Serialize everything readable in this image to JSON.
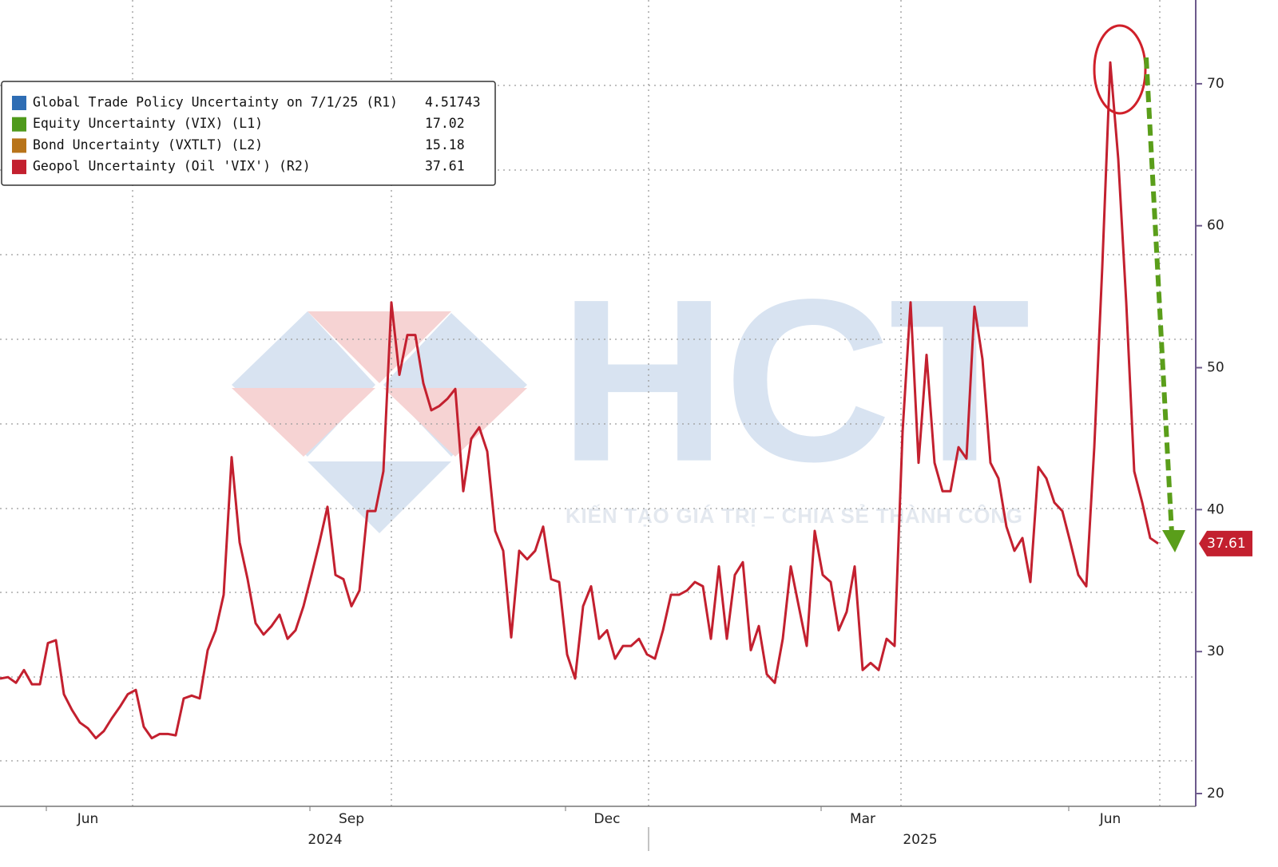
{
  "chart_data": {
    "type": "line",
    "categories": [
      null,
      null,
      null,
      null,
      null,
      null,
      null,
      null,
      null,
      null,
      null,
      "Jun",
      null,
      null,
      null,
      null,
      null,
      null,
      null,
      null,
      null,
      null,
      null,
      null,
      null,
      null,
      null,
      null,
      null,
      null,
      null,
      null,
      null,
      null,
      null,
      null,
      null,
      null,
      null,
      null,
      null,
      null,
      null,
      null,
      "Sep",
      null,
      null,
      null,
      null,
      null,
      null,
      null,
      null,
      null,
      null,
      null,
      null,
      null,
      null,
      null,
      null,
      null,
      null,
      null,
      null,
      null,
      null,
      null,
      null,
      null,
      null,
      null,
      null,
      null,
      null,
      null,
      "Dec",
      null,
      null,
      null,
      null,
      null,
      null,
      null,
      null,
      null,
      null,
      null,
      null,
      null,
      null,
      null,
      null,
      null,
      null,
      null,
      null,
      null,
      null,
      null,
      null,
      null,
      null,
      null,
      null,
      null,
      null,
      null,
      "Mar",
      null,
      null,
      null,
      null,
      null,
      null,
      null,
      null,
      null,
      null,
      null,
      null,
      null,
      null,
      null,
      null,
      null,
      null,
      null,
      null,
      null,
      null,
      null,
      null,
      null,
      null,
      null,
      null,
      null,
      null,
      "Jun",
      null,
      null,
      null,
      null,
      null,
      null
    ],
    "x_group_labels": [
      "2024",
      "2025"
    ],
    "series": [
      {
        "name": "Global Trade Policy Uncertainty on 7/1/25 (R1)",
        "color": "#2e6db4",
        "last_value": 4.51743
      },
      {
        "name": "Equity Uncertainty (VIX) (L1)",
        "color": "#4f9a1c",
        "last_value": 17.02
      },
      {
        "name": "Bond Uncertainty (VXTLT) (L2)",
        "color": "#b8741a",
        "last_value": 15.18
      },
      {
        "name": "Geopol Uncertainty (Oil 'VIX') (R2)",
        "color": "#c3202f",
        "last_value": 37.61,
        "axis": "y2",
        "values": [
          28.1,
          28.2,
          27.8,
          28.7,
          27.7,
          27.7,
          30.6,
          30.8,
          27.0,
          25.9,
          25.0,
          24.6,
          23.9,
          24.4,
          25.3,
          26.1,
          27.0,
          27.3,
          24.7,
          23.9,
          24.2,
          24.2,
          24.1,
          26.7,
          26.9,
          26.7,
          30.1,
          31.5,
          34.0,
          43.7,
          37.7,
          35.1,
          32.0,
          31.2,
          31.8,
          32.6,
          30.9,
          31.5,
          33.2,
          35.4,
          37.7,
          40.2,
          35.4,
          35.1,
          33.2,
          34.3,
          39.9,
          39.9,
          42.7,
          54.6,
          49.5,
          52.3,
          52.3,
          48.9,
          47.0,
          47.3,
          47.8,
          48.5,
          41.3,
          45.0,
          45.8,
          44.1,
          38.5,
          37.1,
          31.0,
          37.1,
          36.5,
          37.1,
          38.8,
          35.1,
          34.9,
          29.8,
          28.1,
          33.2,
          34.6,
          30.9,
          31.5,
          29.5,
          30.4,
          30.4,
          30.9,
          29.8,
          29.5,
          31.5,
          34.0,
          34.0,
          34.3,
          34.9,
          34.6,
          30.9,
          36.0,
          30.9,
          35.4,
          36.3,
          30.1,
          31.8,
          28.4,
          27.8,
          30.9,
          36.0,
          33.2,
          30.4,
          38.5,
          35.4,
          34.9,
          31.5,
          32.8,
          36.0,
          28.7,
          29.2,
          28.7,
          30.9,
          30.4,
          45.5,
          54.6,
          43.3,
          50.9,
          43.3,
          41.3,
          41.3,
          44.4,
          43.6,
          54.3,
          50.6,
          43.3,
          42.2,
          38.8,
          37.1,
          38.0,
          34.9,
          43.0,
          42.2,
          40.5,
          39.9,
          37.7,
          35.4,
          34.6,
          44.4,
          57.1,
          71.5,
          64.7,
          54.6,
          42.7,
          40.5,
          38.0,
          37.61
        ]
      }
    ],
    "y2lim": [
      19.1,
      75.9
    ],
    "y2ticks": [
      20,
      30,
      40,
      50,
      60,
      70
    ],
    "legend": "upper left",
    "watermark": {
      "logo": "HCT",
      "tagline": "KIẾN TẠO GIÁ TRỊ – CHIA SẺ THÀNH CÔNG"
    }
  }
}
